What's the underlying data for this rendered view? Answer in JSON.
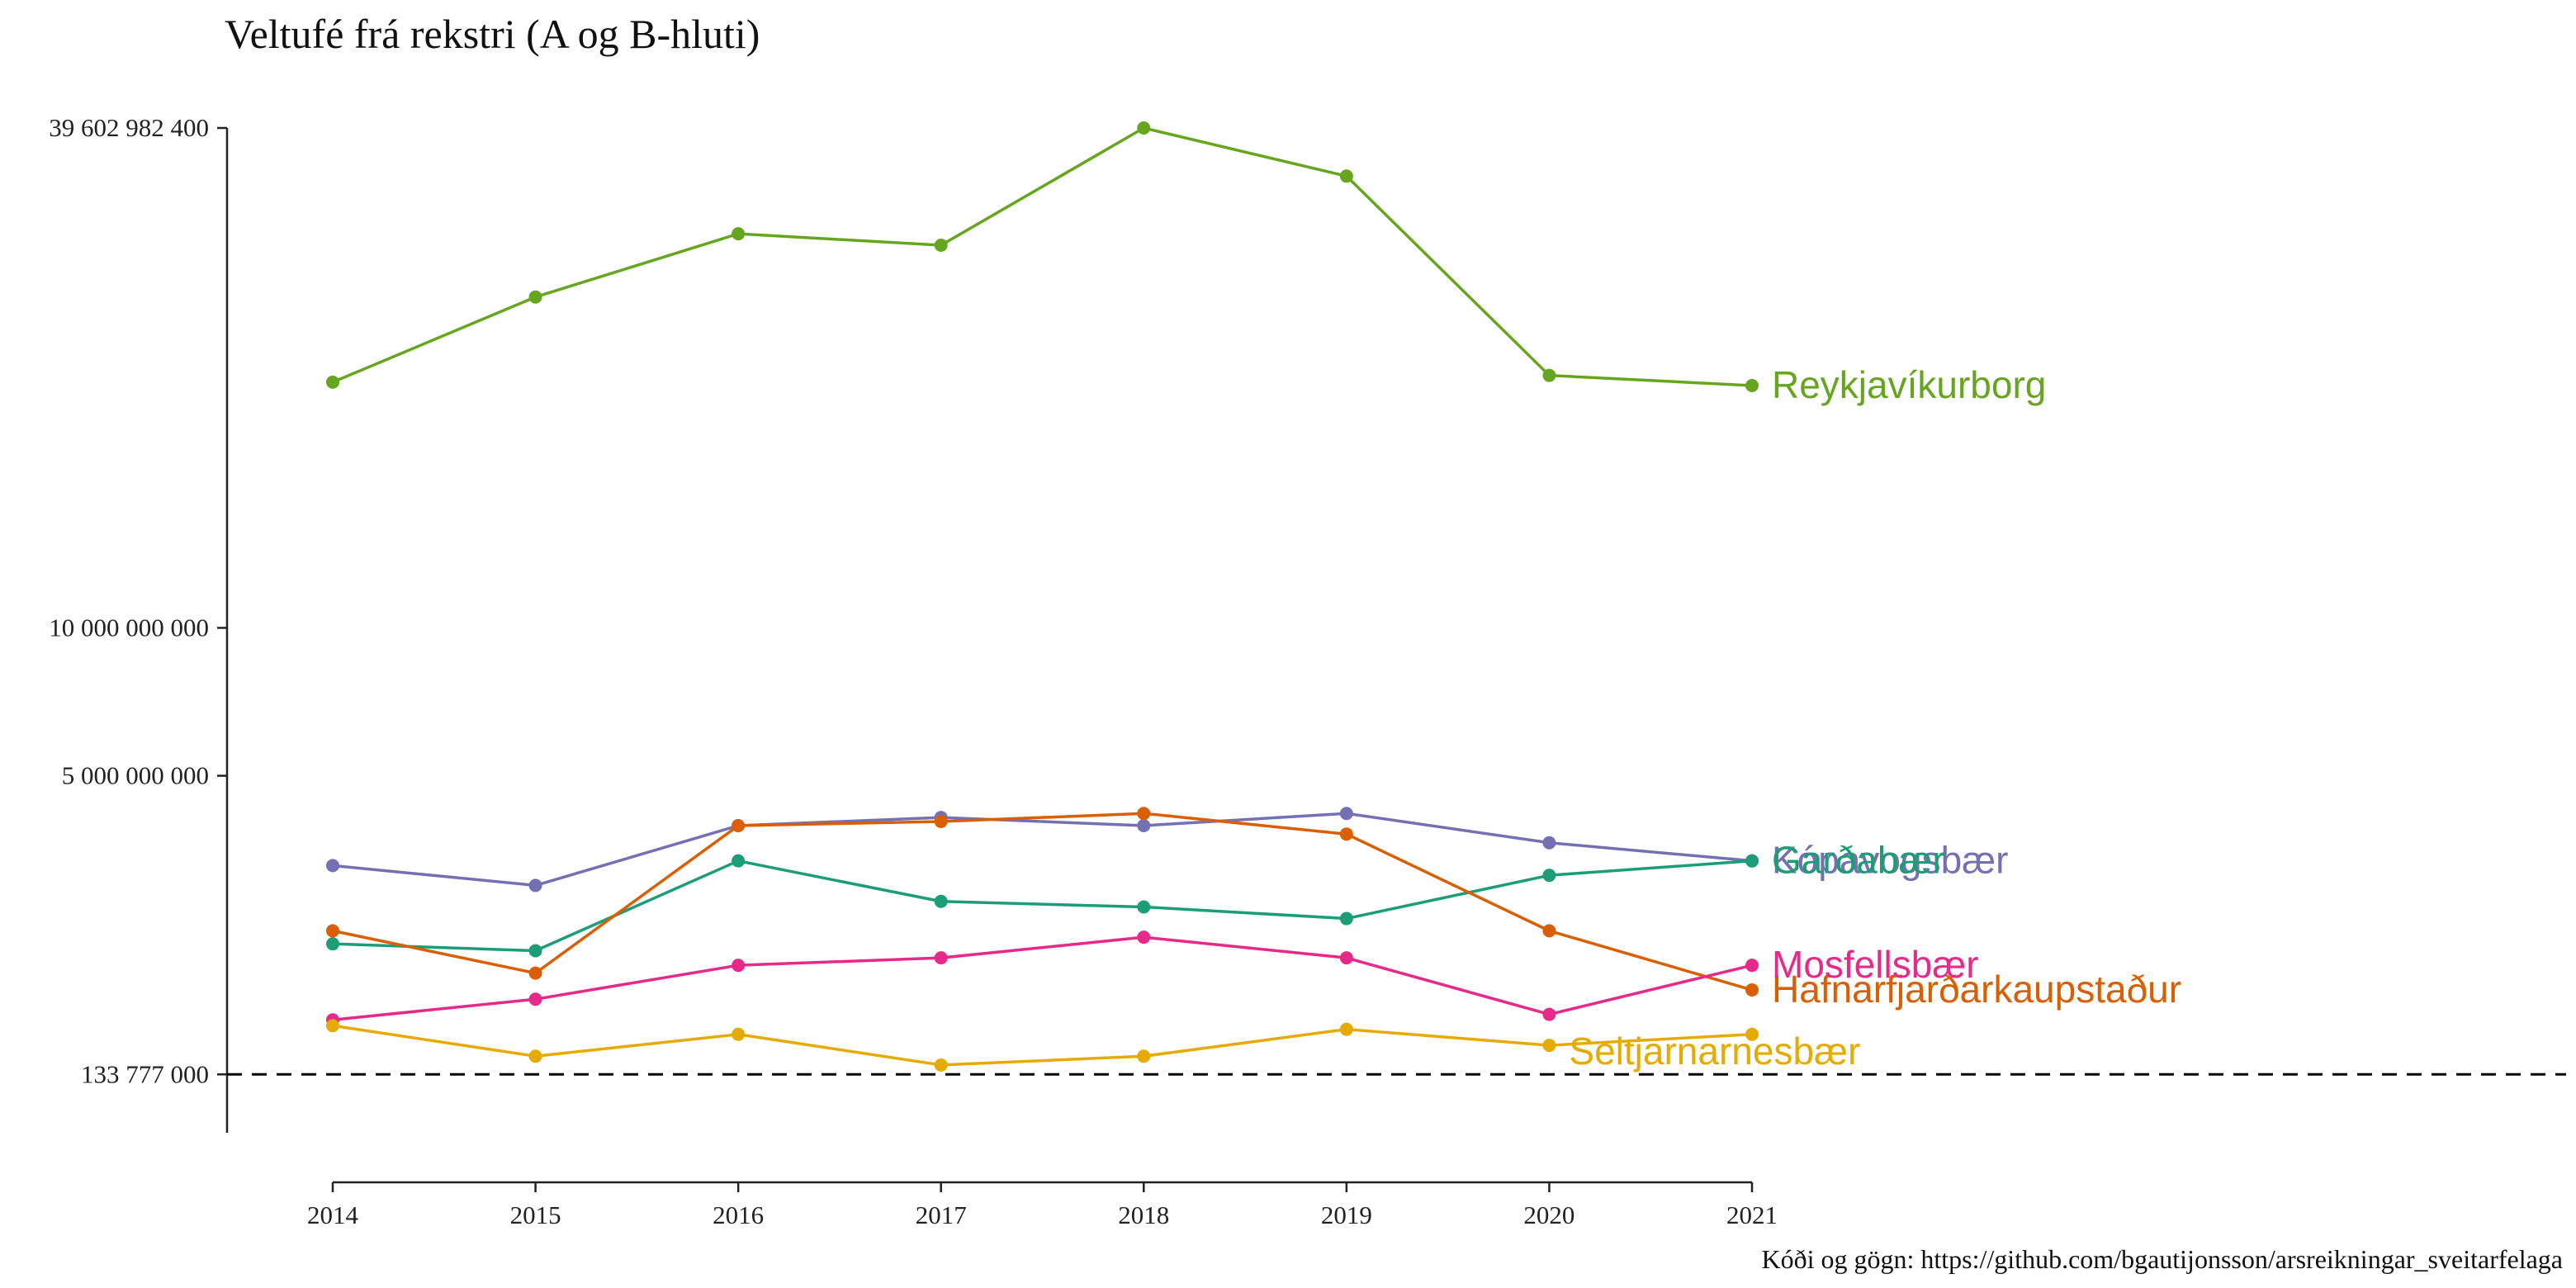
{
  "chart_data": {
    "type": "line",
    "title": "Veltufé frá rekstri (A og B-hluti)",
    "caption": "Kóði og gögn: https://github.com/bgautijonsson/arsreikningar_sveitarfelaga",
    "xlabel": "",
    "ylabel": "",
    "x": [
      2014,
      2015,
      2016,
      2017,
      2018,
      2019,
      2020,
      2021
    ],
    "y_scale": "square-root",
    "y_ticks": [
      133777000,
      5000000000,
      10000000000,
      39602982400
    ],
    "y_tick_labels": [
      "133 777 000",
      "5 000 000 000",
      "10 000 000 000",
      "39 602 982 400"
    ],
    "ylim": [
      0,
      39602982400
    ],
    "reference_line": {
      "value": 133777000,
      "style": "dashed",
      "color": "#000000"
    },
    "grid": false,
    "legend": "direct labels at line ends",
    "series": [
      {
        "name": "Reykjavíkurborg",
        "color": "#66A61E",
        "values": [
          22100000000,
          27400000000,
          31700000000,
          30900000000,
          39602982400,
          35900000000,
          22500000000,
          21900000000
        ]
      },
      {
        "name": "Kópavogsbær",
        "color": "#7570B3",
        "values": [
          2800000000,
          2400000000,
          3700000000,
          3900000000,
          3700000000,
          4000000000,
          3300000000,
          2900000000
        ]
      },
      {
        "name": "Garðabær",
        "color": "#1B9E77",
        "values": [
          1400000000,
          1300000000,
          2900000000,
          2100000000,
          2000000000,
          1800000000,
          2600000000,
          2900000000
        ]
      },
      {
        "name": "Hafnarfjarðarkaupstaður",
        "color": "#D95F02",
        "values": [
          1600000000,
          1000000000,
          3700000000,
          3800000000,
          4000000000,
          3500000000,
          1600000000,
          800000000
        ]
      },
      {
        "name": "Mosfellsbær",
        "color": "#E7298A",
        "values": [
          500000000,
          700000000,
          1100000000,
          1200000000,
          1500000000,
          1200000000,
          550000000,
          1100000000
        ]
      },
      {
        "name": "Seltjarnarnesbær",
        "color": "#E6AB02",
        "values": [
          450000000,
          230000000,
          380000000,
          180000000,
          230000000,
          420000000,
          300000000,
          380000000
        ]
      }
    ]
  }
}
